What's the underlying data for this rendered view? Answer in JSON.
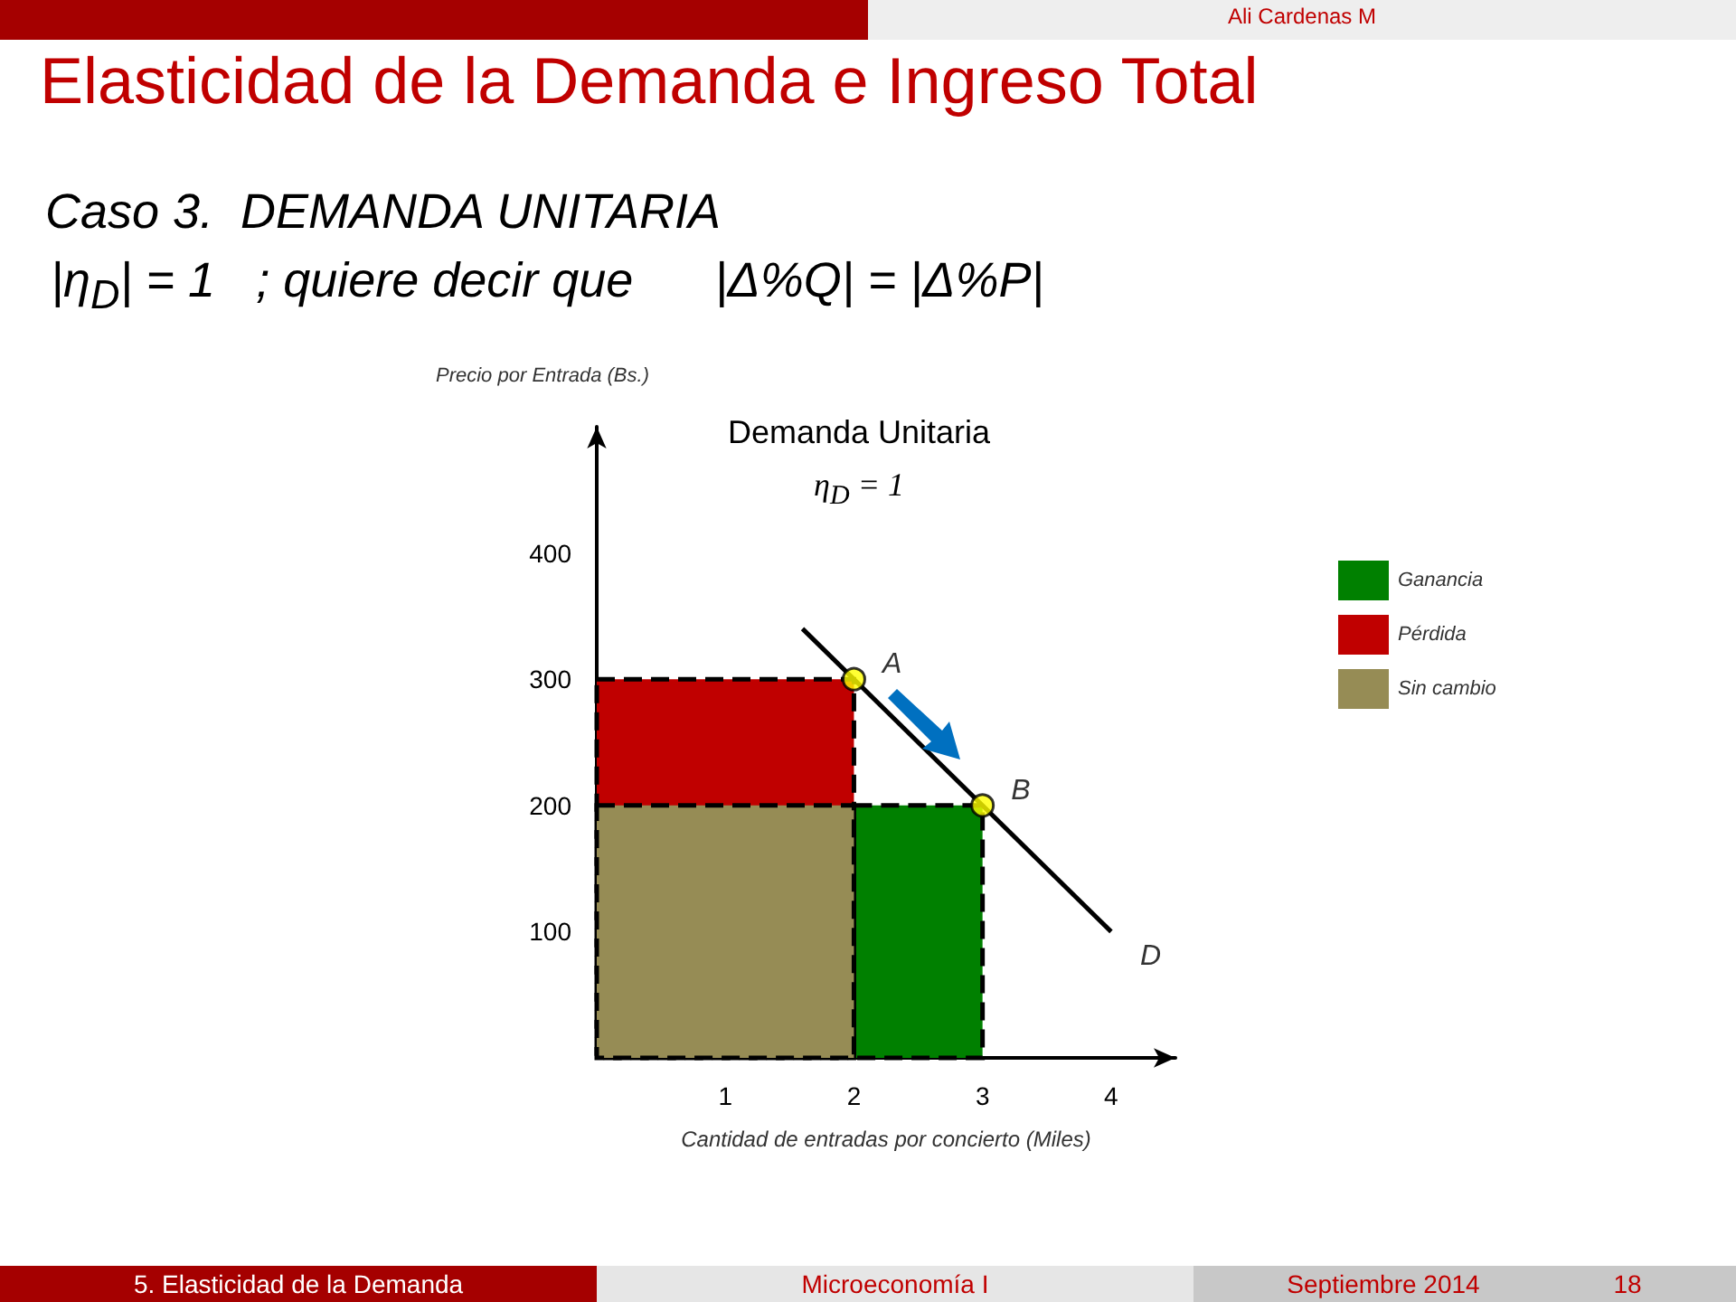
{
  "chart_data": {
    "type": "area",
    "title": "Elasticidad de la Demanda e Ingreso Total",
    "subtitle": "Caso 3.  DEMANDA UNITARIA",
    "xlabel": "Cantidad de entradas por concierto (Miles)",
    "ylabel": "Precio por Entrada (Bs.)",
    "xlim": [
      0,
      4.5
    ],
    "xticks": [
      1,
      2,
      3,
      4
    ],
    "ylim": [
      0,
      500
    ],
    "yticks": [
      100,
      200,
      300,
      400
    ],
    "grid": false,
    "legend": "right",
    "series": [
      {
        "name": "Ganancia",
        "type": "area",
        "color": "#008000",
        "x": [
          2,
          3
        ],
        "values": [
          200,
          200
        ],
        "line_style": "dashed"
      },
      {
        "name": "Pérdida",
        "type": "area",
        "color": "#c00000",
        "x": [
          0,
          2
        ],
        "values": [
          300,
          300
        ],
        "line_style": "dashed"
      },
      {
        "name": "Sin cambio",
        "type": "area",
        "color": "#968c55",
        "x": [
          0,
          2
        ],
        "values": [
          200,
          200
        ],
        "line_style": "dashed"
      },
      {
        "name": "D",
        "type": "line",
        "color": "#000000",
        "x": [
          1.6,
          4
        ],
        "values": [
          340,
          100
        ],
        "line_style": "solid"
      },
      {
        "name": "A",
        "type": "scatter",
        "color": "#ffff00",
        "x": [
          2
        ],
        "values": [
          300
        ],
        "marker": "circle"
      },
      {
        "name": "B",
        "type": "scatter",
        "color": "#ffff00",
        "x": [
          3
        ],
        "values": [
          200
        ],
        "marker": "circle"
      }
    ],
    "annotations": [
      "Ali Cardenas M",
      "Demanda Unitaria",
      "η$_{D}$ = 1",
      "|η$_{D}$| = 1   ; quiere decir que      |Δ%Q| = |Δ%P|",
      "5. Elasticidad de la Demanda",
      "Microeconomía I",
      "Septiembre 2014",
      "18"
    ]
  }
}
